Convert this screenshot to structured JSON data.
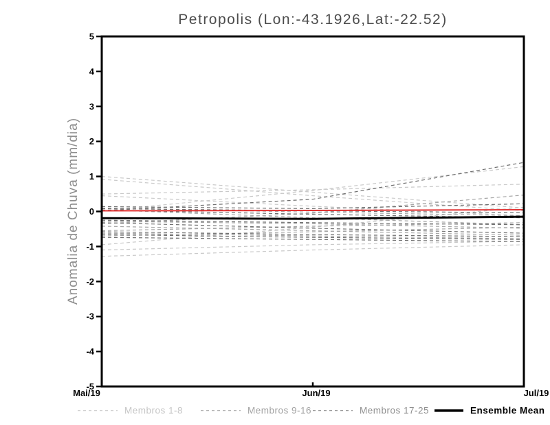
{
  "chart_data": {
    "type": "line",
    "title": "Petropolis (Lon:-43.1926,Lat:-22.52)",
    "ylabel": "Anomalia de Chuva (mm/dia)",
    "xlabel": "",
    "x_ticks": [
      "Mai/19",
      "Jun/19",
      "Jul/19"
    ],
    "y_ticks": [
      5,
      4,
      3,
      2,
      1,
      0,
      -1,
      -2,
      -3,
      -4,
      -5
    ],
    "ylim": [
      -5,
      5
    ],
    "grid": false,
    "legend_position": "bottom",
    "colors": {
      "group_1_8": "#c9c9c9",
      "group_9_16": "#a5a5a5",
      "group_17_25": "#6f6f6f",
      "reference_red": "#e23333",
      "ensemble_mean": "#000000",
      "frame": "#000000",
      "title_text": "#4c4c4c",
      "ylabel_text": "#8e8e8e"
    },
    "groups": [
      {
        "label": "Membros 1-8",
        "color": "#c9c9c9",
        "style": "dashed"
      },
      {
        "label": "Membros 9-16",
        "color": "#a5a5a5",
        "style": "dashed"
      },
      {
        "label": "Membros 17-25",
        "color": "#6f6f6f",
        "style": "dashed"
      },
      {
        "label": "Ensemble Mean",
        "color": "#000000",
        "style": "solid"
      }
    ],
    "x": [
      "Mai/19",
      "Jun/19",
      "Jul/19"
    ],
    "series": [
      {
        "name": "Membro 1",
        "group": 0,
        "values": [
          1.0,
          0.55,
          0.1
        ]
      },
      {
        "name": "Membro 2",
        "group": 0,
        "values": [
          0.92,
          0.45,
          0.02
        ]
      },
      {
        "name": "Membro 3",
        "group": 0,
        "values": [
          0.5,
          0.62,
          0.78
        ]
      },
      {
        "name": "Membro 4",
        "group": 0,
        "values": [
          0.45,
          0.15,
          -0.12
        ]
      },
      {
        "name": "Membro 5",
        "group": 0,
        "values": [
          0.02,
          0.6,
          1.28
        ]
      },
      {
        "name": "Membro 6",
        "group": 0,
        "values": [
          -0.95,
          -0.45,
          0.12
        ]
      },
      {
        "name": "Membro 7",
        "group": 0,
        "values": [
          -1.1,
          -0.95,
          -0.85
        ]
      },
      {
        "name": "Membro 8",
        "group": 0,
        "values": [
          -1.28,
          -1.1,
          -0.95
        ]
      },
      {
        "name": "Membro 9",
        "group": 1,
        "values": [
          0.1,
          -0.02,
          -0.12
        ]
      },
      {
        "name": "Membro 10",
        "group": 1,
        "values": [
          0.05,
          -0.18,
          -0.38
        ]
      },
      {
        "name": "Membro 11",
        "group": 1,
        "values": [
          -0.28,
          -0.35,
          -0.48
        ]
      },
      {
        "name": "Membro 12",
        "group": 1,
        "values": [
          -0.35,
          -0.05,
          0.47
        ]
      },
      {
        "name": "Membro 13",
        "group": 1,
        "values": [
          -0.42,
          -0.55,
          -0.68
        ]
      },
      {
        "name": "Membro 14",
        "group": 1,
        "values": [
          -0.55,
          -0.42,
          -0.32
        ]
      },
      {
        "name": "Membro 15",
        "group": 1,
        "values": [
          -0.62,
          -0.7,
          -0.78
        ]
      },
      {
        "name": "Membro 16",
        "group": 1,
        "values": [
          -0.7,
          -0.58,
          -0.45
        ]
      },
      {
        "name": "Membro 17",
        "group": 2,
        "values": [
          0.02,
          0.35,
          1.4
        ]
      },
      {
        "name": "Membro 18",
        "group": 2,
        "values": [
          0.14,
          0.08,
          0.22
        ]
      },
      {
        "name": "Membro 19",
        "group": 2,
        "values": [
          0.08,
          0.02,
          -0.04
        ]
      },
      {
        "name": "Membro 20",
        "group": 2,
        "values": [
          0.04,
          -0.08,
          -0.18
        ]
      },
      {
        "name": "Membro 21",
        "group": 2,
        "values": [
          -0.25,
          -0.32,
          -0.38
        ]
      },
      {
        "name": "Membro 22",
        "group": 2,
        "values": [
          -0.32,
          -0.48,
          -0.62
        ]
      },
      {
        "name": "Membro 23",
        "group": 2,
        "values": [
          -0.58,
          -0.66,
          -0.72
        ]
      },
      {
        "name": "Membro 24",
        "group": 2,
        "values": [
          -0.66,
          -0.74,
          -0.8
        ]
      },
      {
        "name": "Membro 25",
        "group": 2,
        "values": [
          -0.74,
          -0.8,
          -0.86
        ]
      }
    ],
    "reference_line": {
      "name": "zero-reference",
      "color": "#e23333",
      "values": [
        0.02,
        0.03,
        0.05
      ]
    },
    "ensemble_mean": {
      "name": "Ensemble Mean",
      "color": "#000000",
      "values": [
        -0.19,
        -0.21,
        -0.15
      ]
    }
  },
  "legend": {
    "items": [
      {
        "label": "Membros 1-8",
        "swatch": "dashed",
        "color": "#c9c9c9",
        "text_color": "#c6c6c6"
      },
      {
        "label": "Membros 9-16",
        "swatch": "dashed",
        "color": "#a5a5a5",
        "text_color": "#a2a2a2"
      },
      {
        "label": "Membros 17-25",
        "swatch": "dashed",
        "color": "#8a8a8a",
        "text_color": "#8f8f8f"
      },
      {
        "label": "Ensemble Mean",
        "swatch": "solid",
        "color": "#000000",
        "text_color": "#000000"
      }
    ]
  }
}
